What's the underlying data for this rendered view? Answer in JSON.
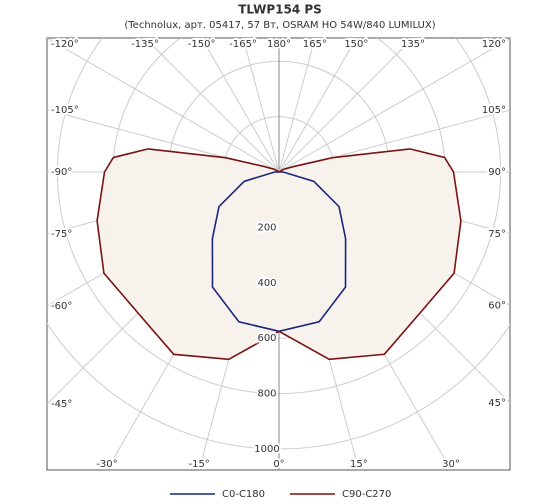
{
  "chart_data": {
    "type": "polar",
    "title": "TLWP154 PS",
    "subtitle": "(Technolux, арт. 05417, 57 Вт, OSRAM HO 54W/840 LUMILUX)",
    "angles": [
      -180,
      -165,
      -150,
      -135,
      -120,
      -110,
      -105,
      -100,
      -95,
      -90,
      -75,
      -60,
      -45,
      -30,
      -15,
      0,
      15,
      30,
      45,
      60,
      75,
      90,
      95,
      100,
      105,
      110,
      120,
      135,
      150,
      165,
      180
    ],
    "series": [
      {
        "name": "C0-C180",
        "color": "#1a237e",
        "values": [
          0,
          0,
          0,
          0,
          0,
          0,
          0,
          0,
          0,
          15,
          130,
          250,
          340,
          480,
          560,
          575,
          560,
          480,
          340,
          250,
          130,
          15,
          0,
          0,
          0,
          0,
          0,
          0,
          0,
          0,
          0
        ]
      },
      {
        "name": "C90-C270",
        "color": "#7b1113",
        "values": [
          0,
          0,
          0,
          0,
          20,
          60,
          200,
          480,
          600,
          630,
          680,
          730,
          720,
          760,
          700,
          575,
          700,
          760,
          720,
          730,
          680,
          630,
          600,
          480,
          200,
          60,
          20,
          0,
          0,
          0,
          0
        ]
      }
    ],
    "rlim": [
      0,
      1000
    ],
    "rticks": [
      200,
      400,
      600,
      800,
      1000
    ],
    "angle_ticks": [
      {
        "value": -120,
        "label": "-120°"
      },
      {
        "value": -135,
        "label": "-135°"
      },
      {
        "value": -150,
        "label": "-150°"
      },
      {
        "value": -165,
        "label": "-165°"
      },
      {
        "value": 180,
        "label": "180°"
      },
      {
        "value": 165,
        "label": "165°"
      },
      {
        "value": 150,
        "label": "150°"
      },
      {
        "value": 135,
        "label": "135°"
      },
      {
        "value": 120,
        "label": "120°"
      },
      {
        "value": -105,
        "label": "-105°"
      },
      {
        "value": -90,
        "label": "-90°"
      },
      {
        "value": -75,
        "label": "-75°"
      },
      {
        "value": -60,
        "label": "-60°"
      },
      {
        "value": -45,
        "label": "-45°"
      },
      {
        "value": 105,
        "label": "105°"
      },
      {
        "value": 90,
        "label": "90°"
      },
      {
        "value": 75,
        "label": "75°"
      },
      {
        "value": 60,
        "label": "60°"
      },
      {
        "value": 45,
        "label": "45°"
      },
      {
        "value": -30,
        "label": "-30°"
      },
      {
        "value": -15,
        "label": "-15°"
      },
      {
        "value": 0,
        "label": "0°"
      },
      {
        "value": 15,
        "label": "15°"
      },
      {
        "value": 30,
        "label": "30°"
      }
    ],
    "fill": "#f7f3ec"
  }
}
